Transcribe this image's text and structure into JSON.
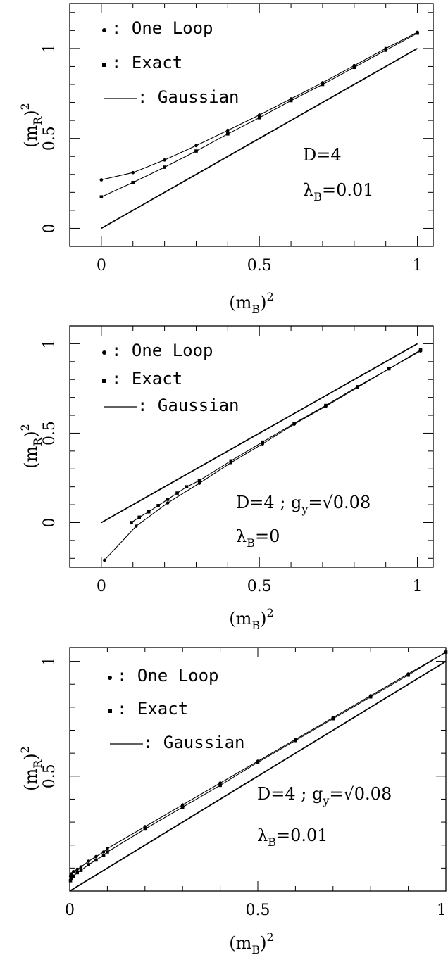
{
  "chart_data": [
    {
      "type": "line",
      "xlabel": "(m_B)^2",
      "ylabel": "(m_R)^2",
      "xlim": [
        -0.1,
        1.05
      ],
      "ylim": [
        -0.1,
        1.25
      ],
      "x_ticks": [
        0,
        0.5,
        1
      ],
      "x_tick_labels": [
        "0",
        "0.5",
        "1"
      ],
      "y_ticks": [
        0,
        0.5,
        1
      ],
      "y_tick_labels": [
        "0",
        "0.5",
        "1"
      ],
      "legend": [
        {
          "marker": "circle",
          "label": "One Loop"
        },
        {
          "marker": "square",
          "label": "Exact"
        },
        {
          "marker": "line",
          "label": "Gaussian"
        }
      ],
      "annotations": [
        {
          "text": "D=4"
        },
        {
          "text": "λ_B=0.01"
        }
      ],
      "series": [
        {
          "name": "One Loop",
          "marker": "circle",
          "x": [
            0,
            0.1,
            0.2,
            0.3,
            0.4,
            0.5,
            0.6,
            0.7,
            0.8,
            0.9,
            1.0
          ],
          "y": [
            0.27,
            0.31,
            0.38,
            0.46,
            0.545,
            0.63,
            0.72,
            0.81,
            0.905,
            1.0,
            1.09
          ]
        },
        {
          "name": "Exact",
          "marker": "square",
          "x": [
            0,
            0.1,
            0.2,
            0.3,
            0.4,
            0.5,
            0.6,
            0.7,
            0.8,
            0.9,
            1.0
          ],
          "y": [
            0.175,
            0.255,
            0.34,
            0.43,
            0.525,
            0.615,
            0.71,
            0.8,
            0.895,
            0.99,
            1.085
          ]
        },
        {
          "name": "Gaussian",
          "marker": "none",
          "x": [
            0,
            1
          ],
          "y": [
            0,
            1
          ]
        }
      ]
    },
    {
      "type": "line",
      "xlabel": "(m_B)^2",
      "ylabel": "(m_R)^2",
      "xlim": [
        -0.1,
        1.05
      ],
      "ylim": [
        -0.25,
        1.1
      ],
      "x_ticks": [
        0,
        0.5,
        1
      ],
      "x_tick_labels": [
        "0",
        "0.5",
        "1"
      ],
      "y_ticks": [
        0,
        0.5,
        1
      ],
      "y_tick_labels": [
        "0",
        "0.5",
        "1"
      ],
      "legend": [
        {
          "marker": "circle",
          "label": "One Loop"
        },
        {
          "marker": "square",
          "label": "Exact"
        },
        {
          "marker": "line",
          "label": "Gaussian"
        }
      ],
      "annotations": [
        {
          "text": "D=4 ; g_y=√0.08"
        },
        {
          "text": "λ_B=0"
        }
      ],
      "series": [
        {
          "name": "One Loop",
          "marker": "circle",
          "x": [
            0.01,
            0.11,
            0.21,
            0.31,
            0.41,
            0.51,
            0.61,
            0.71,
            0.81,
            0.91,
            1.01
          ],
          "y": [
            -0.21,
            -0.02,
            0.11,
            0.22,
            0.335,
            0.44,
            0.55,
            0.65,
            0.755,
            0.86,
            0.96
          ]
        },
        {
          "name": "Exact",
          "marker": "square",
          "x": [
            0.095,
            0.12,
            0.15,
            0.18,
            0.21,
            0.24,
            0.27,
            0.31,
            0.41,
            0.51,
            0.61,
            0.71,
            0.81,
            0.91,
            1.01
          ],
          "y": [
            0.0,
            0.03,
            0.06,
            0.095,
            0.13,
            0.165,
            0.2,
            0.235,
            0.345,
            0.45,
            0.555,
            0.655,
            0.76,
            0.86,
            0.965
          ]
        },
        {
          "name": "Gaussian",
          "marker": "none",
          "x": [
            0,
            1
          ],
          "y": [
            0,
            1
          ]
        }
      ]
    },
    {
      "type": "line",
      "xlabel": "(m_B)^2",
      "ylabel": "(m_R)^2",
      "xlim": [
        0,
        1
      ],
      "ylim": [
        0,
        1.06
      ],
      "x_ticks": [
        0,
        0.5,
        1
      ],
      "x_tick_labels": [
        "0",
        "0.5",
        "1"
      ],
      "y_ticks": [
        0.5,
        1
      ],
      "y_tick_labels": [
        "0.5",
        "1"
      ],
      "legend": [
        {
          "marker": "circle",
          "label": "One Loop"
        },
        {
          "marker": "square",
          "label": "Exact"
        },
        {
          "marker": "line",
          "label": "Gaussian"
        }
      ],
      "annotations": [
        {
          "text": "D=4 ; g_y=√0.08"
        },
        {
          "text": "λ_B=0.01"
        }
      ],
      "series": [
        {
          "name": "One Loop",
          "marker": "circle",
          "x": [
            0.002,
            0.005,
            0.01,
            0.02,
            0.03,
            0.05,
            0.07,
            0.09,
            0.1,
            0.2,
            0.3,
            0.4,
            0.5,
            0.6,
            0.7,
            0.8,
            0.9,
            1.0
          ],
          "y": [
            0.065,
            0.075,
            0.085,
            0.095,
            0.105,
            0.13,
            0.15,
            0.17,
            0.185,
            0.28,
            0.375,
            0.47,
            0.565,
            0.66,
            0.755,
            0.85,
            0.945,
            1.04
          ]
        },
        {
          "name": "Exact",
          "marker": "square",
          "x": [
            0.002,
            0.005,
            0.01,
            0.02,
            0.03,
            0.05,
            0.07,
            0.09,
            0.1,
            0.2,
            0.3,
            0.4,
            0.5,
            0.6,
            0.7,
            0.8,
            0.9,
            1.0
          ],
          "y": [
            0.045,
            0.055,
            0.065,
            0.08,
            0.09,
            0.115,
            0.135,
            0.155,
            0.17,
            0.27,
            0.365,
            0.46,
            0.56,
            0.655,
            0.75,
            0.845,
            0.94,
            1.04
          ]
        },
        {
          "name": "Gaussian",
          "marker": "none",
          "x": [
            0,
            1
          ],
          "y": [
            0,
            1
          ]
        }
      ]
    }
  ]
}
